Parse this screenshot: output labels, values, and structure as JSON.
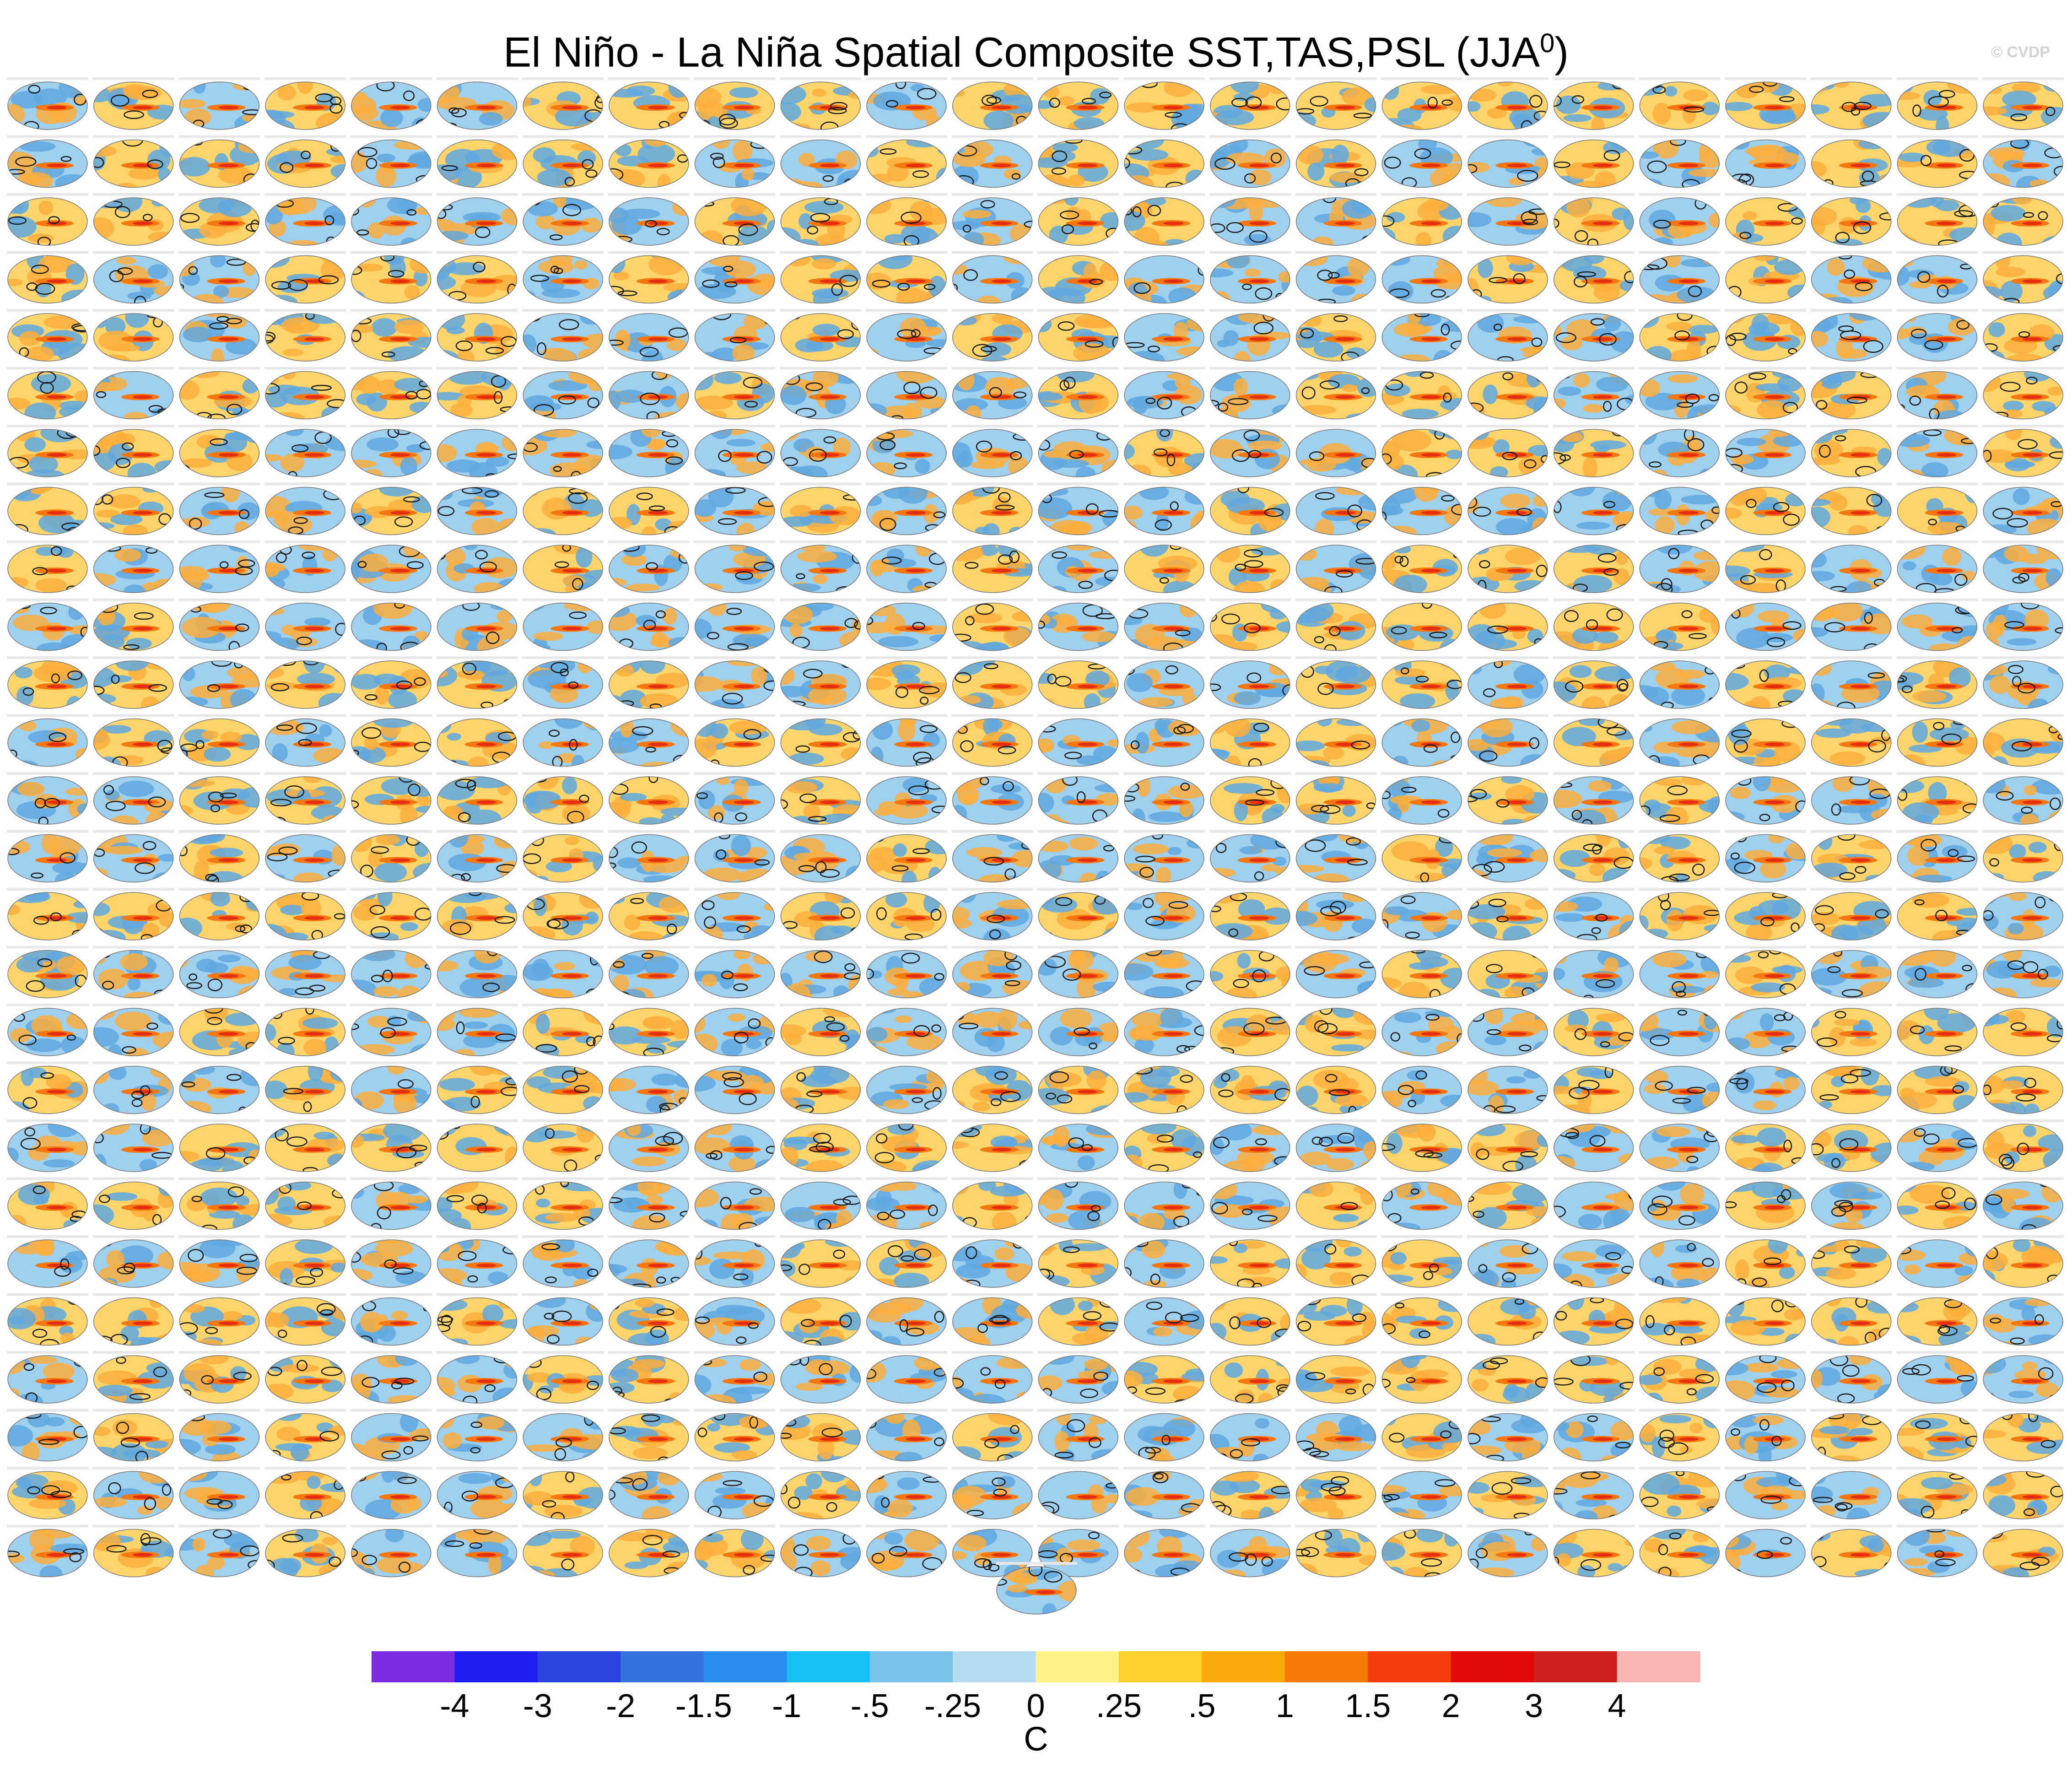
{
  "title": "El Niño - La Niña Spatial Composite SST,TAS,PSL (JJA",
  "title_superscript": "0",
  "title_close": ")",
  "credit": "© CVDP",
  "panels": {
    "rows": 26,
    "cols": 24,
    "extra": 1
  },
  "colorbar": {
    "units": "C",
    "labels": [
      "-4",
      "-3",
      "-2",
      "-1.5",
      "-1",
      "-.5",
      "-.25",
      "0",
      ".25",
      ".5",
      "1",
      "1.5",
      "2",
      "3",
      "4"
    ],
    "colors": [
      "#7b2ce0",
      "#1e1ef0",
      "#2a46dc",
      "#3474de",
      "#2a8ef0",
      "#16bff5",
      "#7ac4ea",
      "#b4dcef",
      "#fff388",
      "#fed02c",
      "#fba90a",
      "#f77a06",
      "#f33d0c",
      "#e40a0a",
      "#cf1f1f",
      "#f9b4b4"
    ]
  }
}
